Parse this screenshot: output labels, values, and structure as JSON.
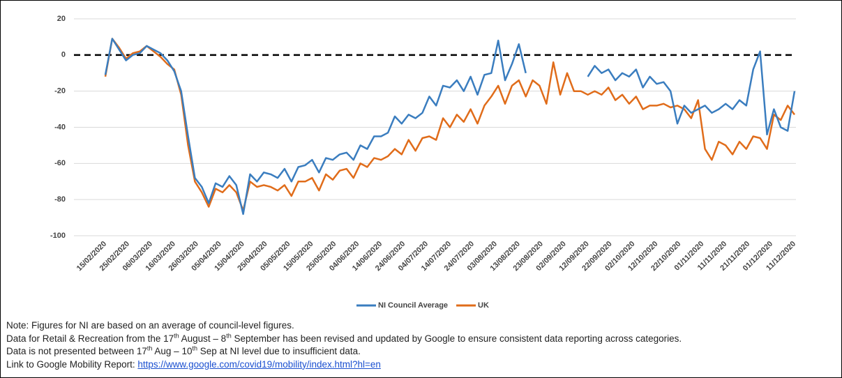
{
  "chart_data": {
    "type": "line",
    "x": [
      "15/02/2020",
      "18/02/2020",
      "21/02/2020",
      "24/02/2020",
      "27/02/2020",
      "01/03/2020",
      "04/03/2020",
      "07/03/2020",
      "10/03/2020",
      "13/03/2020",
      "16/03/2020",
      "19/03/2020",
      "22/03/2020",
      "25/03/2020",
      "28/03/2020",
      "31/03/2020",
      "03/04/2020",
      "06/04/2020",
      "09/04/2020",
      "12/04/2020",
      "15/04/2020",
      "18/04/2020",
      "21/04/2020",
      "24/04/2020",
      "27/04/2020",
      "30/04/2020",
      "03/05/2020",
      "06/05/2020",
      "09/05/2020",
      "12/05/2020",
      "15/05/2020",
      "18/05/2020",
      "21/05/2020",
      "24/05/2020",
      "27/05/2020",
      "30/05/2020",
      "02/06/2020",
      "05/06/2020",
      "08/06/2020",
      "11/06/2020",
      "14/06/2020",
      "17/06/2020",
      "20/06/2020",
      "23/06/2020",
      "26/06/2020",
      "29/06/2020",
      "02/07/2020",
      "05/07/2020",
      "08/07/2020",
      "11/07/2020",
      "14/07/2020",
      "17/07/2020",
      "20/07/2020",
      "23/07/2020",
      "26/07/2020",
      "29/07/2020",
      "01/08/2020",
      "04/08/2020",
      "07/08/2020",
      "10/08/2020",
      "13/08/2020",
      "16/08/2020",
      "19/08/2020",
      "22/08/2020",
      "25/08/2020",
      "28/08/2020",
      "31/08/2020",
      "03/09/2020",
      "06/09/2020",
      "09/09/2020",
      "12/09/2020",
      "15/09/2020",
      "18/09/2020",
      "21/09/2020",
      "24/09/2020",
      "27/09/2020",
      "30/09/2020",
      "03/10/2020",
      "06/10/2020",
      "09/10/2020",
      "12/10/2020",
      "15/10/2020",
      "18/10/2020",
      "21/10/2020",
      "24/10/2020",
      "27/10/2020",
      "30/10/2020",
      "02/11/2020",
      "05/11/2020",
      "08/11/2020",
      "11/11/2020",
      "14/11/2020",
      "17/11/2020",
      "20/11/2020",
      "23/11/2020",
      "26/11/2020",
      "29/11/2020",
      "02/12/2020",
      "05/12/2020",
      "08/12/2020",
      "11/12/2020"
    ],
    "series": [
      {
        "name": "NI Council Average",
        "color": "#3a7dbf",
        "values": [
          -11,
          9,
          3,
          -3,
          0,
          1,
          5,
          3,
          1,
          -3,
          -9,
          -20,
          -45,
          -68,
          -73,
          -82,
          -71,
          -73,
          -67,
          -72,
          -88,
          -66,
          -70,
          -65,
          -66,
          -68,
          -63,
          -70,
          -62,
          -61,
          -58,
          -65,
          -57,
          -58,
          -55,
          -54,
          -58,
          -50,
          -52,
          -45,
          -45,
          -43,
          -34,
          -38,
          -33,
          -35,
          -32,
          -23,
          -28,
          -17,
          -18,
          -14,
          -20,
          -12,
          -22,
          -11,
          -10,
          8,
          -14,
          -5,
          6,
          -10,
          null,
          null,
          null,
          null,
          null,
          null,
          null,
          null,
          -12,
          -6,
          -10,
          -8,
          -14,
          -10,
          -12,
          -8,
          -18,
          -12,
          -16,
          -15,
          -20,
          -38,
          -28,
          -32,
          -30,
          -28,
          -32,
          -30,
          -27,
          -30,
          -25,
          -28,
          -8,
          2,
          -44,
          -30,
          -40,
          -42,
          -20
        ]
      },
      {
        "name": "UK",
        "color": "#e06c1a",
        "values": [
          -12,
          9,
          4,
          -2,
          1,
          2,
          5,
          2,
          -1,
          -5,
          -8,
          -22,
          -50,
          -70,
          -76,
          -84,
          -74,
          -76,
          -72,
          -76,
          -86,
          -70,
          -73,
          -72,
          -73,
          -75,
          -72,
          -78,
          -70,
          -70,
          -68,
          -75,
          -66,
          -69,
          -64,
          -63,
          -68,
          -60,
          -62,
          -57,
          -58,
          -56,
          -52,
          -55,
          -47,
          -53,
          -46,
          -45,
          -47,
          -35,
          -40,
          -33,
          -37,
          -30,
          -38,
          -28,
          -23,
          -17,
          -27,
          -17,
          -14,
          -23,
          -14,
          -17,
          -27,
          -4,
          -22,
          -10,
          -20,
          -20,
          -22,
          -20,
          -22,
          -18,
          -25,
          -22,
          -27,
          -23,
          -30,
          -28,
          -28,
          -27,
          -29,
          -28,
          -30,
          -35,
          -25,
          -52,
          -58,
          -48,
          -50,
          -55,
          -48,
          -52,
          -45,
          -46,
          -52,
          -33,
          -36,
          -28,
          -33
        ]
      }
    ],
    "xlim": [
      "15/02/2020",
      "11/12/2020"
    ],
    "xticks": [
      "15/02/2020",
      "25/02/2020",
      "06/03/2020",
      "16/03/2020",
      "26/03/2020",
      "05/04/2020",
      "15/04/2020",
      "25/04/2020",
      "05/05/2020",
      "15/05/2020",
      "25/05/2020",
      "04/06/2020",
      "14/06/2020",
      "24/06/2020",
      "04/07/2020",
      "14/07/2020",
      "24/07/2020",
      "03/08/2020",
      "13/08/2020",
      "23/08/2020",
      "02/09/2020",
      "12/09/2020",
      "22/09/2020",
      "02/10/2020",
      "12/10/2020",
      "22/10/2020",
      "01/11/2020",
      "11/11/2020",
      "21/11/2020",
      "01/12/2020",
      "11/12/2020"
    ],
    "ylim": [
      -100,
      20
    ],
    "yticks": [
      -100,
      -80,
      -60,
      -40,
      -20,
      0,
      20
    ],
    "grid": true
  },
  "notes": {
    "line1": "Note: Figures for NI are based on an average of council-level figures.",
    "line2": [
      "Data for Retail & Recreation from the 17",
      "th",
      " August – 8",
      "th",
      " September has been revised and updated by Google to ensure consistent data reporting across categories."
    ],
    "line3": [
      "Data is not presented between 17",
      "th",
      " Aug – 10",
      "th",
      " Sep at NI level due to insufficient data."
    ],
    "line4": "Link to Google Mobility Report: ",
    "link": "https://www.google.com/covid19/mobility/index.html?hl=en"
  }
}
